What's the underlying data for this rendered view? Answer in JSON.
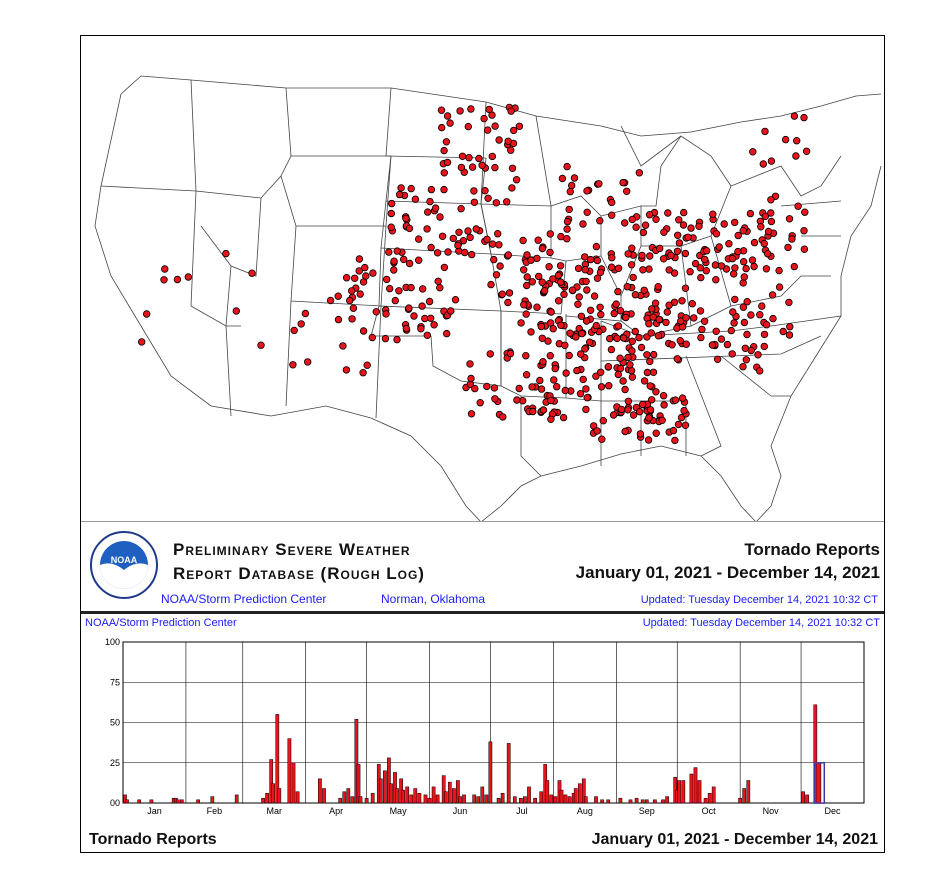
{
  "banner": {
    "title_line1": "Preliminary Severe Weather",
    "title_line2": "Report Database (Rough Log)",
    "report_type": "Tornado Reports",
    "date_range": "January 01, 2021 - December 14, 2021",
    "org": "NOAA/Storm Prediction Center",
    "location": "Norman, Oklahoma",
    "updated": "Updated:  Tuesday December 14, 2021 10:32 CT",
    "logo_text": "NOAA"
  },
  "histogram_header": {
    "org": "NOAA/Storm Prediction Center",
    "updated": "Updated:  Tuesday December 14, 2021 10:32 CT"
  },
  "footer": {
    "left": "Tornado Reports",
    "right": "January 01, 2021 - December 14, 2021"
  },
  "colors": {
    "dot_fill": "#e8141c",
    "dot_stroke": "#000000",
    "bar_fill": "#e8141c",
    "bar_stroke": "#000000",
    "highlight_box": "#3a3aa0",
    "blue_text": "#1a1aff"
  },
  "chart_data": [
    {
      "type": "scatter",
      "description_kind": "map",
      "title": "",
      "xlabel": "",
      "ylabel": "",
      "note": "Tornado report locations over the contiguous United States"
    },
    {
      "type": "bar",
      "title": "",
      "xlabel": "",
      "ylabel": "",
      "ylim": [
        0,
        100
      ],
      "yticks": [
        "00",
        "25",
        "50",
        "75",
        "100"
      ],
      "month_labels": [
        "Jan",
        "Feb",
        "Mar",
        "Apr",
        "May",
        "Jun",
        "Jul",
        "Aug",
        "Sep",
        "Oct",
        "Nov",
        "Dec"
      ],
      "grid": true,
      "series": [
        {
          "values": [
            {
              "day": 1,
              "v": 5
            },
            {
              "day": 2,
              "v": 2
            },
            {
              "day": 8,
              "v": 2
            },
            {
              "day": 14,
              "v": 2
            },
            {
              "day": 25,
              "v": 3
            },
            {
              "day": 26,
              "v": 3
            },
            {
              "day": 27,
              "v": 2
            },
            {
              "day": 29,
              "v": 2
            },
            {
              "day": 37,
              "v": 2
            },
            {
              "day": 44,
              "v": 4
            },
            {
              "day": 56,
              "v": 5
            },
            {
              "day": 69,
              "v": 3
            },
            {
              "day": 71,
              "v": 6
            },
            {
              "day": 73,
              "v": 27
            },
            {
              "day": 74,
              "v": 12
            },
            {
              "day": 76,
              "v": 55
            },
            {
              "day": 77,
              "v": 9
            },
            {
              "day": 82,
              "v": 40
            },
            {
              "day": 84,
              "v": 25
            },
            {
              "day": 86,
              "v": 7
            },
            {
              "day": 97,
              "v": 15
            },
            {
              "day": 99,
              "v": 9
            },
            {
              "day": 107,
              "v": 3
            },
            {
              "day": 109,
              "v": 7
            },
            {
              "day": 111,
              "v": 9
            },
            {
              "day": 113,
              "v": 4
            },
            {
              "day": 115,
              "v": 52
            },
            {
              "day": 116,
              "v": 24
            },
            {
              "day": 117,
              "v": 4
            },
            {
              "day": 120,
              "v": 3
            },
            {
              "day": 123,
              "v": 6
            },
            {
              "day": 126,
              "v": 24
            },
            {
              "day": 127,
              "v": 15
            },
            {
              "day": 129,
              "v": 20
            },
            {
              "day": 131,
              "v": 28
            },
            {
              "day": 132,
              "v": 12
            },
            {
              "day": 134,
              "v": 19
            },
            {
              "day": 135,
              "v": 9
            },
            {
              "day": 137,
              "v": 15
            },
            {
              "day": 138,
              "v": 8
            },
            {
              "day": 140,
              "v": 10
            },
            {
              "day": 142,
              "v": 5
            },
            {
              "day": 144,
              "v": 9
            },
            {
              "day": 146,
              "v": 6
            },
            {
              "day": 149,
              "v": 5
            },
            {
              "day": 151,
              "v": 3
            },
            {
              "day": 153,
              "v": 10
            },
            {
              "day": 155,
              "v": 5
            },
            {
              "day": 158,
              "v": 17
            },
            {
              "day": 159,
              "v": 7
            },
            {
              "day": 161,
              "v": 13
            },
            {
              "day": 163,
              "v": 9
            },
            {
              "day": 165,
              "v": 14
            },
            {
              "day": 166,
              "v": 4
            },
            {
              "day": 168,
              "v": 5
            },
            {
              "day": 173,
              "v": 5
            },
            {
              "day": 175,
              "v": 4
            },
            {
              "day": 177,
              "v": 10
            },
            {
              "day": 179,
              "v": 5
            },
            {
              "day": 181,
              "v": 38
            },
            {
              "day": 185,
              "v": 3
            },
            {
              "day": 187,
              "v": 6
            },
            {
              "day": 190,
              "v": 37
            },
            {
              "day": 193,
              "v": 4
            },
            {
              "day": 196,
              "v": 3
            },
            {
              "day": 198,
              "v": 4
            },
            {
              "day": 200,
              "v": 10
            },
            {
              "day": 203,
              "v": 3
            },
            {
              "day": 206,
              "v": 7
            },
            {
              "day": 208,
              "v": 24
            },
            {
              "day": 209,
              "v": 14
            },
            {
              "day": 211,
              "v": 5
            },
            {
              "day": 213,
              "v": 4
            },
            {
              "day": 215,
              "v": 14
            },
            {
              "day": 216,
              "v": 8
            },
            {
              "day": 218,
              "v": 5
            },
            {
              "day": 220,
              "v": 4
            },
            {
              "day": 222,
              "v": 6
            },
            {
              "day": 223,
              "v": 9
            },
            {
              "day": 225,
              "v": 12
            },
            {
              "day": 227,
              "v": 15
            },
            {
              "day": 228,
              "v": 4
            },
            {
              "day": 233,
              "v": 4
            },
            {
              "day": 236,
              "v": 2
            },
            {
              "day": 239,
              "v": 2
            },
            {
              "day": 245,
              "v": 3
            },
            {
              "day": 250,
              "v": 2
            },
            {
              "day": 253,
              "v": 3
            },
            {
              "day": 256,
              "v": 2
            },
            {
              "day": 258,
              "v": 2
            },
            {
              "day": 262,
              "v": 2
            },
            {
              "day": 266,
              "v": 2
            },
            {
              "day": 268,
              "v": 4
            },
            {
              "day": 272,
              "v": 16
            },
            {
              "day": 273,
              "v": 8
            },
            {
              "day": 274,
              "v": 14
            },
            {
              "day": 276,
              "v": 14
            },
            {
              "day": 280,
              "v": 18
            },
            {
              "day": 282,
              "v": 22
            },
            {
              "day": 284,
              "v": 14
            },
            {
              "day": 287,
              "v": 3
            },
            {
              "day": 289,
              "v": 6
            },
            {
              "day": 291,
              "v": 10
            },
            {
              "day": 304,
              "v": 3
            },
            {
              "day": 306,
              "v": 9
            },
            {
              "day": 308,
              "v": 14
            },
            {
              "day": 335,
              "v": 7
            },
            {
              "day": 337,
              "v": 5
            },
            {
              "day": 341,
              "v": 61
            },
            {
              "day": 343,
              "v": 25
            }
          ]
        }
      ]
    }
  ]
}
